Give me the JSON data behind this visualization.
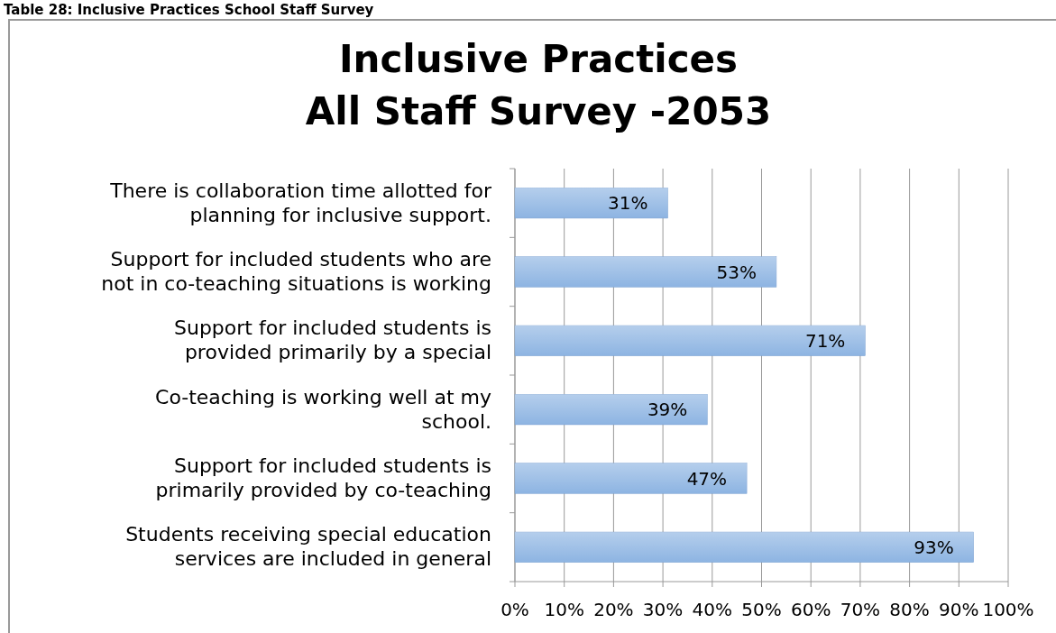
{
  "chart_data": {
    "type": "bar",
    "orientation": "horizontal",
    "title": "Inclusive Practices\nAll Staff Survey -2053",
    "subtitle": "Table 28: Inclusive Practices School Staff Survey",
    "categories": [
      "There is collaboration time allotted for planning for inclusive support.",
      "Support for included students who are not in co-teaching situations is working",
      "Support for included students is provided primarily by a special",
      "Co-teaching is working well at my school.",
      "Support for included students is primarily provided by co-teaching",
      "Students receiving special education services are included in general"
    ],
    "values": [
      31,
      53,
      71,
      39,
      47,
      93
    ],
    "value_labels": [
      "31%",
      "53%",
      "71%",
      "39%",
      "47%",
      "93%"
    ],
    "color": "#8db4e2",
    "xlim": [
      0,
      100
    ],
    "xticks": [
      {
        "value": 0,
        "label": "0%"
      },
      {
        "value": 10,
        "label": "10%"
      },
      {
        "value": 20,
        "label": "20%"
      },
      {
        "value": 30,
        "label": "30%"
      },
      {
        "value": 40,
        "label": "40%"
      },
      {
        "value": 50,
        "label": "50%"
      },
      {
        "value": 60,
        "label": "60%"
      },
      {
        "value": 70,
        "label": "70%"
      },
      {
        "value": 80,
        "label": "80%"
      },
      {
        "value": 90,
        "label": "90%"
      },
      {
        "value": 100,
        "label": "100%"
      }
    ],
    "grid": "x"
  }
}
